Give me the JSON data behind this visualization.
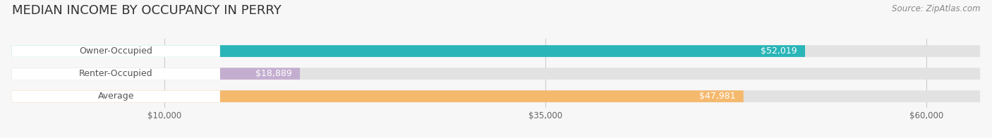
{
  "title": "MEDIAN INCOME BY OCCUPANCY IN PERRY",
  "source": "Source: ZipAtlas.com",
  "categories": [
    "Owner-Occupied",
    "Renter-Occupied",
    "Average"
  ],
  "values": [
    52019,
    18889,
    47981
  ],
  "bar_colors": [
    "#2ab5b8",
    "#c4aed0",
    "#f5b96e"
  ],
  "bar_bg_color": "#e2e2e2",
  "value_labels": [
    "$52,019",
    "$18,889",
    "$47,981"
  ],
  "x_ticks": [
    10000,
    35000,
    60000
  ],
  "x_tick_labels": [
    "$10,000",
    "$35,000",
    "$60,000"
  ],
  "xlim_max": 63500,
  "title_fontsize": 13,
  "label_fontsize": 9,
  "tick_fontsize": 8.5,
  "source_fontsize": 8.5,
  "background_color": "#f7f7f7",
  "label_text_color": "#555555",
  "value_text_color": "#ffffff"
}
